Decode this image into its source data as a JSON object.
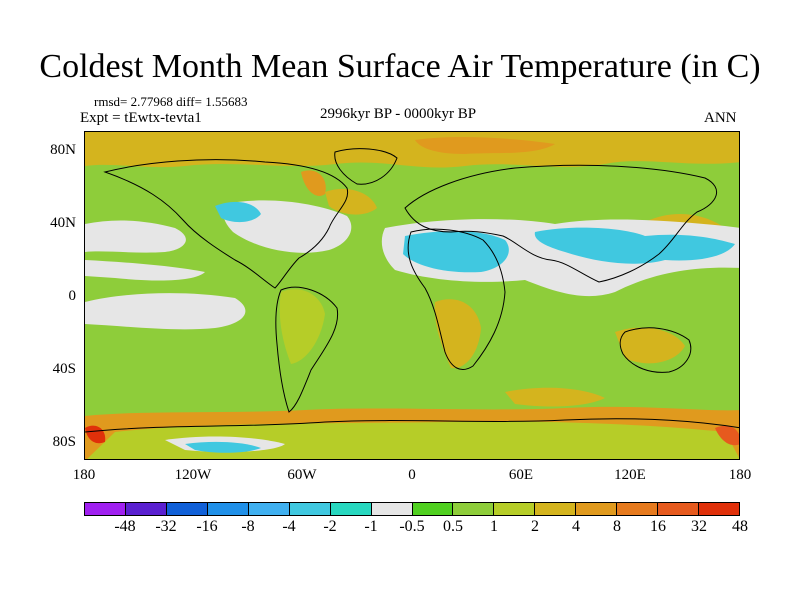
{
  "title": "Coldest Month Mean Surface Air Temperature (in C)",
  "stats": "rmsd= 2.77968 diff= 1.55683",
  "experiment": "Expt = tEwtx-tevta1",
  "period": "2996kyr BP - 0000kyr BP",
  "season": "ANN",
  "map": {
    "projection": "cylindrical equidistant",
    "lon_range": [
      -180,
      180
    ],
    "lat_range": [
      -90,
      90
    ],
    "latitude_labels": [
      {
        "lat": 80,
        "text": "80N"
      },
      {
        "lat": 40,
        "text": "40N"
      },
      {
        "lat": 0,
        "text": "0"
      },
      {
        "lat": -40,
        "text": "40S"
      },
      {
        "lat": -80,
        "text": "80S"
      }
    ],
    "longitude_labels": [
      {
        "lon": -180,
        "text": "180"
      },
      {
        "lon": -120,
        "text": "120W"
      },
      {
        "lon": -60,
        "text": "60W"
      },
      {
        "lon": 0,
        "text": "0"
      },
      {
        "lon": 60,
        "text": "60E"
      },
      {
        "lon": 120,
        "text": "120E"
      },
      {
        "lon": 180,
        "text": "180"
      }
    ]
  },
  "colorbar": {
    "colors": [
      "#a020f0",
      "#5a20d0",
      "#1060d8",
      "#2090e8",
      "#40b0f0",
      "#40c8e0",
      "#28d8c0",
      "#e6e6e6",
      "#50d020",
      "#8ecd3a",
      "#b6cd28",
      "#d4b41e",
      "#e09a1e",
      "#e67a1e",
      "#e65a1e",
      "#e0300a"
    ],
    "levels": [
      "-48",
      "-32",
      "-16",
      "-8",
      "-4",
      "-2",
      "-1",
      "-0.5",
      "0.5",
      "1",
      "2",
      "4",
      "8",
      "16",
      "32",
      "48"
    ]
  }
}
